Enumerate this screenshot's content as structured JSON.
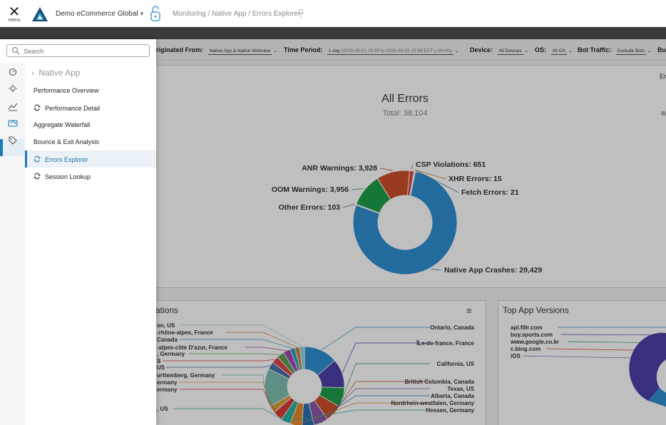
{
  "header": {
    "menu_label": "menu",
    "app_name": "Demo eCommerce Global",
    "breadcrumb": "Monitoring / Native App / Errors Explorer"
  },
  "filters": {
    "originated_label": "Originated From:",
    "originated_value": "Native App & Native Webview",
    "period_label": "Time Period:",
    "period_value": "1 day",
    "period_detail": "(2026-06-01 15:59 to 2026-06-02 15:59 EDT (-04:00))",
    "device_label": "Device:",
    "device_value": "All Devices",
    "os_label": "OS:",
    "os_value": "All OS",
    "bot_label": "Bot Traffic:",
    "bot_value": "Exclude Bots",
    "bu_label": "Bu"
  },
  "nav": {
    "search_placeholder": "Search",
    "section": "Native App",
    "items": [
      {
        "label": "Performance Overview",
        "icon": "none"
      },
      {
        "label": "Performance Detail",
        "icon": "refresh-icon"
      },
      {
        "label": "Aggregate Waterfall",
        "icon": "none"
      },
      {
        "label": "Bounce & Exit Analysis",
        "icon": "none"
      },
      {
        "label": "Errors Explorer",
        "icon": "refresh-icon",
        "active": true
      },
      {
        "label": "Session Lookup",
        "icon": "refresh-icon"
      }
    ]
  },
  "all_errors": {
    "right_edge_text": "Er",
    "chart_data": {
      "type": "pie",
      "title": "All Errors",
      "subtitle": "Total: 38,104",
      "slices": [
        {
          "label": "Native App Crashes",
          "value": 29429,
          "display": "Native App Crashes: 29,429",
          "color": "#2f8fd0"
        },
        {
          "label": "Other Errors",
          "value": 103,
          "display": "Other Errors: 103",
          "color": "#8a5aa8"
        },
        {
          "label": "OOM Warnings",
          "value": 3956,
          "display": "OOM Warnings: 3,956",
          "color": "#1e9e4a"
        },
        {
          "label": "ANR Warnings",
          "value": 3928,
          "display": "ANR Warnings: 3,928",
          "color": "#cc4f2a"
        },
        {
          "label": "CSP Violations",
          "value": 651,
          "display": "CSP Violations: 651",
          "color": "#e64545"
        },
        {
          "label": "XHR Errors",
          "value": 15,
          "display": "XHR Errors: 15",
          "color": "#d97d2a"
        },
        {
          "label": "Fetch Errors",
          "value": 21,
          "display": "Fetch Errors: 21",
          "color": "#3a7fb8"
        }
      ]
    }
  },
  "locations": {
    "title_fragment": "ations",
    "right_labels": [
      "Ontario, Canada",
      "ÎLe-de-france, France",
      "California, US",
      "British Columbia, Canada",
      "Texas, US",
      "Alberta, Canada",
      "Nordrhein-westfalen, Germany",
      "Hessen, Germany"
    ],
    "left_labels": [
      "on, US",
      "-rhône-alpes, France",
      "Canada",
      "-alpes-côte D'azur, France",
      ", Germany",
      "S",
      "US",
      "urttemberg, Germany",
      "ermany",
      "ermany",
      ", US"
    ],
    "colors": [
      "#2f8fd0",
      "#4b3fa8",
      "#1e9e4a",
      "#cc4f2a",
      "#8a5aa8",
      "#2a6fb0",
      "#e88a2a",
      "#2db0a0",
      "#d93b3b",
      "#d9a03a",
      "#7fbfb0",
      "#4a6ea8",
      "#e64545",
      "#5aa05a",
      "#a04ab0",
      "#2a9fc0",
      "#c08a40",
      "#8fd0e0"
    ]
  },
  "app_versions": {
    "title": "Top App Versions",
    "labels": [
      "api.fillr.com",
      "buy.sports.com",
      "www.google.co.kr",
      "c.bing.com",
      "iOS"
    ]
  }
}
